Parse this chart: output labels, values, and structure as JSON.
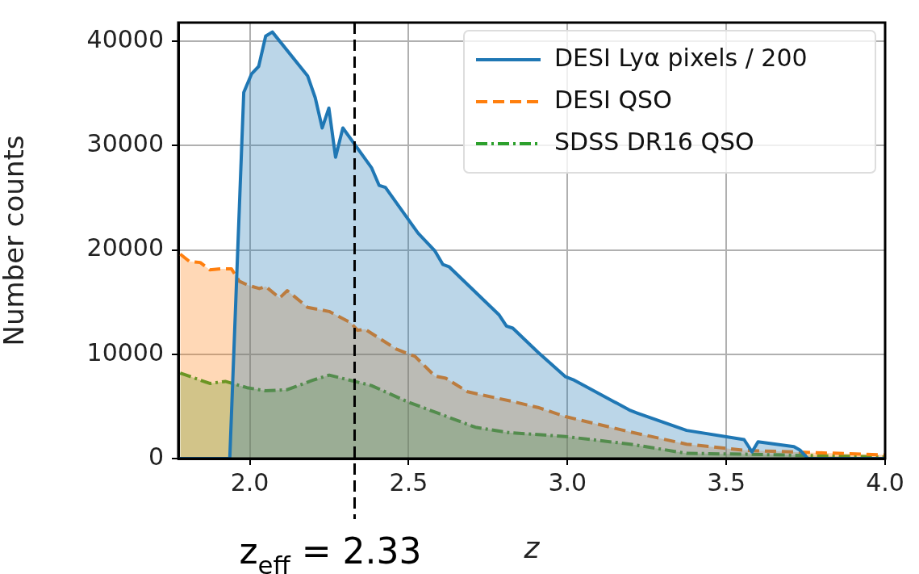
{
  "chart_data": {
    "type": "area",
    "xlabel": "z",
    "ylabel": "Number counts",
    "xlim": [
      1.775,
      4.0
    ],
    "ylim": [
      0,
      41800
    ],
    "xticks": [
      {
        "value": 2,
        "label": "2.0"
      },
      {
        "value": 2.5,
        "label": "2.5"
      },
      {
        "value": 3,
        "label": "3.0"
      },
      {
        "value": 3.5,
        "label": "3.5"
      },
      {
        "value": 4,
        "label": "4.0"
      }
    ],
    "yticks": [
      0,
      10000,
      20000,
      30000,
      40000
    ],
    "grid": true,
    "legend": "top right",
    "ref_lines": [
      {
        "axis": "x",
        "value": 2.33,
        "label": "z$_{eff}$ = 2.33",
        "color": "#000000",
        "line_style": "dashed"
      }
    ],
    "series": [
      {
        "name": "DESI Lyα pixels / 200",
        "color": "#1f77b4",
        "line_style": "solid",
        "x": [
          1.776,
          1.937,
          1.981,
          2.006,
          2.028,
          2.05,
          2.071,
          2.182,
          2.206,
          2.228,
          2.249,
          2.27,
          2.293,
          2.383,
          2.407,
          2.427,
          2.53,
          2.583,
          2.608,
          2.627,
          2.784,
          2.808,
          2.828,
          2.907,
          2.994,
          3.018,
          3.198,
          3.219,
          3.375,
          3.556,
          3.581,
          3.6,
          3.713,
          3.733,
          3.757,
          4.0
        ],
        "values": [
          0,
          0,
          35100,
          36900,
          37600,
          40500,
          40900,
          36700,
          34600,
          31700,
          33600,
          28900,
          31700,
          27900,
          26200,
          26000,
          21600,
          19900,
          18600,
          18400,
          13800,
          12700,
          12500,
          10200,
          7840,
          7560,
          4610,
          4370,
          2700,
          1820,
          640,
          1610,
          1140,
          790,
          0,
          0
        ]
      },
      {
        "name": "DESI QSO",
        "color": "#ff7f0e",
        "line_style": "dashed",
        "x": [
          1.781,
          1.81,
          1.844,
          1.874,
          1.913,
          1.942,
          1.967,
          1.996,
          2.03,
          2.05,
          2.094,
          2.118,
          2.182,
          2.25,
          2.319,
          2.339,
          2.363,
          2.461,
          2.52,
          2.583,
          2.617,
          2.686,
          2.823,
          2.907,
          2.994,
          3.198,
          3.375,
          3.556,
          4.0
        ],
        "values": [
          19600,
          18900,
          18800,
          18100,
          18200,
          18200,
          17000,
          16600,
          16300,
          16500,
          15400,
          16100,
          14500,
          14100,
          13000,
          12300,
          12400,
          10500,
          9800,
          7900,
          7700,
          6400,
          5500,
          4900,
          4020,
          2550,
          1380,
          790,
          350
        ]
      },
      {
        "name": "SDSS DR16 QSO",
        "color": "#2ca02c",
        "line_style": "dashdot",
        "x": [
          1.781,
          1.874,
          1.923,
          1.991,
          2.05,
          2.118,
          2.197,
          2.25,
          2.29,
          2.383,
          2.5,
          2.588,
          2.71,
          2.813,
          2.907,
          2.994,
          3.198,
          3.375,
          3.556,
          4.0
        ],
        "values": [
          8200,
          7200,
          7400,
          6800,
          6500,
          6600,
          7500,
          8000,
          7700,
          7000,
          5400,
          4400,
          3000,
          2500,
          2300,
          2110,
          1380,
          500,
          420,
          140
        ]
      }
    ]
  }
}
